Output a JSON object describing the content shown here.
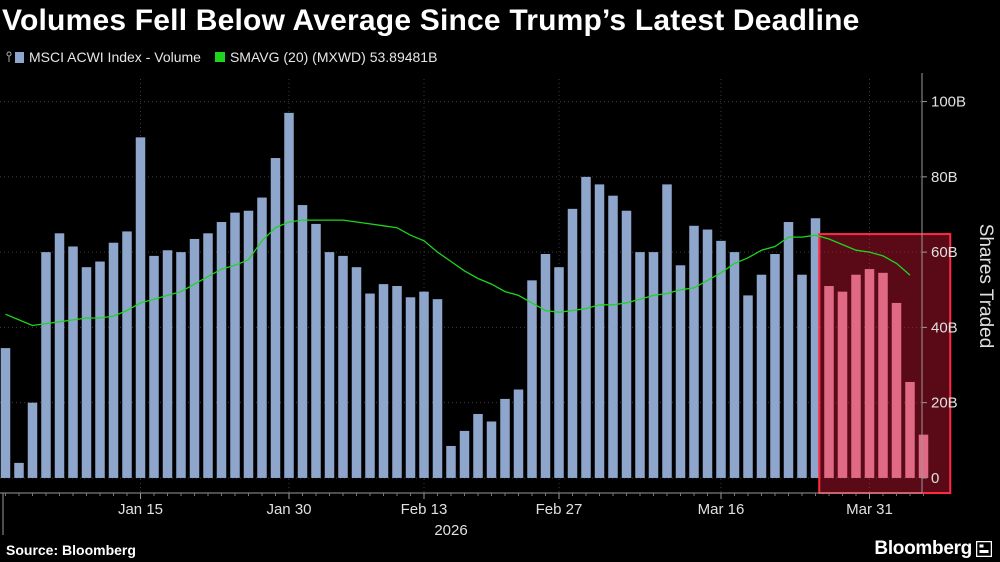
{
  "chart_data": {
    "type": "bar",
    "title": "Volumes Fell Below Average Since Trump’s Latest Deadline",
    "series": [
      {
        "name": "MSCI ACWI Index - Volume",
        "color": "#8fa6cc",
        "values": [
          34.5,
          4,
          20,
          60,
          65,
          61.5,
          56,
          57.5,
          62.5,
          65.5,
          90.5,
          59,
          60.5,
          60,
          63.5,
          65,
          68,
          70.5,
          71,
          74.5,
          85,
          97,
          72.5,
          67.5,
          60,
          59,
          56,
          49,
          51.5,
          51,
          48,
          49.5,
          47.5,
          8.5,
          12.5,
          17,
          15,
          21,
          23.5,
          52.5,
          59.5,
          56,
          71.5,
          80,
          78,
          75,
          71,
          60,
          60,
          78,
          56.5,
          67,
          66,
          63,
          60,
          48.5,
          54,
          59.5,
          68,
          54,
          69,
          51,
          49.5,
          54,
          55.5,
          54.5,
          46.5,
          25.5,
          11.5
        ]
      },
      {
        "name": "SMAVG (20) (MXWD) 53.89481B",
        "color": "#1fd41f",
        "type": "line",
        "values": [
          43.5,
          42,
          40.5,
          41,
          41.5,
          42,
          42.5,
          42.5,
          43,
          44.5,
          46.5,
          47.5,
          48.5,
          49.5,
          51.5,
          53.5,
          55.5,
          56.5,
          58,
          63,
          66.5,
          68,
          68.5,
          68.5,
          68.5,
          68.5,
          68,
          67.5,
          67,
          66.5,
          64.5,
          63,
          60,
          57.5,
          55,
          53,
          51.5,
          49.5,
          48.5,
          46.5,
          44.5,
          44,
          44.5,
          45,
          46,
          46,
          46.5,
          47.5,
          48.5,
          49,
          50,
          50.5,
          52.5,
          54.5,
          57,
          58.5,
          60.5,
          61.5,
          64,
          64,
          64.5,
          63.5,
          62,
          60.5,
          60,
          59,
          57,
          53.9,
          null
        ]
      }
    ],
    "highlight_range": [
      61,
      68
    ],
    "x_tick_labels": [
      {
        "index": 10,
        "label": "Jan 15"
      },
      {
        "index": 21,
        "label": "Jan 30"
      },
      {
        "index": 31,
        "label": "Feb 13"
      },
      {
        "index": 41,
        "label": "Feb 27"
      },
      {
        "index": 53,
        "label": "Mar 16"
      },
      {
        "index": 64,
        "label": "Mar 31"
      }
    ],
    "x_sublabel": "2026",
    "ylabel": "Shares Traded",
    "ylim": [
      -4,
      106
    ],
    "y_ticks": [
      0,
      20,
      40,
      60,
      80,
      100
    ],
    "y_tick_labels": [
      "0",
      "20B",
      "40B",
      "60B",
      "80B",
      "100B"
    ],
    "grid": "dotted horizontal",
    "legend_position": "top-left"
  },
  "footer": {
    "source": "Source: Bloomberg",
    "brand": "Bloomberg"
  }
}
